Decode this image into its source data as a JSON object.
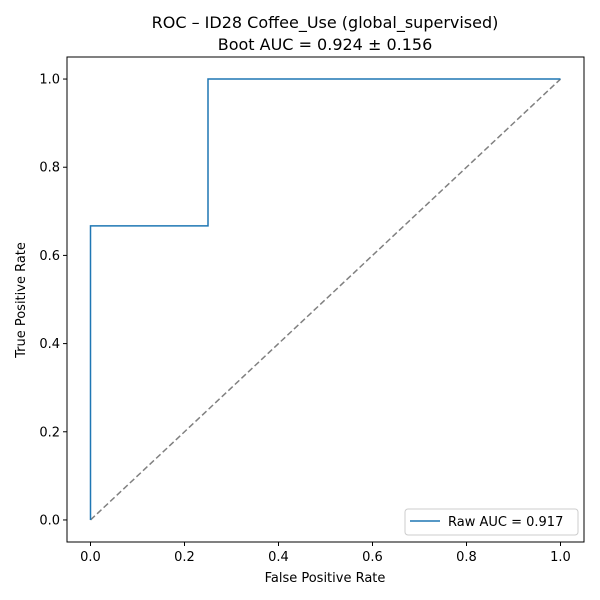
{
  "chart_data": {
    "type": "line",
    "title": "ROC – ID28 Coffee_Use (global_supervised)",
    "subtitle": "Boot AUC = 0.924 ± 0.156",
    "xlabel": "False Positive Rate",
    "ylabel": "True Positive Rate",
    "xlim": [
      -0.05,
      1.05
    ],
    "ylim": [
      -0.05,
      1.05
    ],
    "xticks": [
      0.0,
      0.2,
      0.4,
      0.6,
      0.8,
      1.0
    ],
    "yticks": [
      0.0,
      0.2,
      0.4,
      0.6,
      0.8,
      1.0
    ],
    "xtick_labels": [
      "0.0",
      "0.2",
      "0.4",
      "0.6",
      "0.8",
      "1.0"
    ],
    "ytick_labels": [
      "0.0",
      "0.2",
      "0.4",
      "0.6",
      "0.8",
      "1.0"
    ],
    "grid": false,
    "legend_position": "lower-right",
    "series": [
      {
        "name": "Raw AUC = 0.917",
        "color": "#1f77b4",
        "style": "solid",
        "x": [
          0.0,
          0.0,
          0.25,
          0.25,
          1.0
        ],
        "y": [
          0.0,
          0.667,
          0.667,
          1.0,
          1.0
        ]
      },
      {
        "color": "#808080",
        "style": "dashed",
        "x": [
          0.0,
          1.0
        ],
        "y": [
          0.0,
          1.0
        ]
      }
    ]
  }
}
